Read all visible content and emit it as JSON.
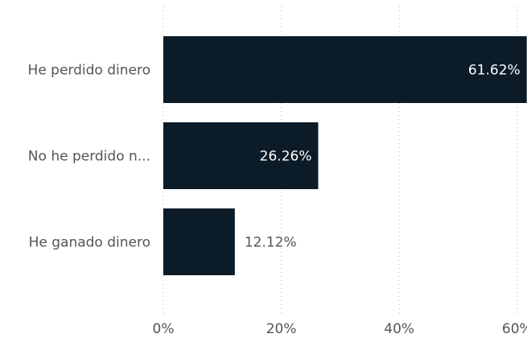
{
  "chart_data": {
    "type": "bar",
    "orientation": "horizontal",
    "categories": [
      "He perdido dinero",
      "No he perdido n...",
      "He ganado dinero"
    ],
    "values": [
      61.62,
      26.26,
      12.12
    ],
    "value_labels": [
      "61.62%",
      "26.26%",
      "12.12%"
    ],
    "xlim": [
      0,
      60
    ],
    "x_ticks": [
      0,
      20,
      40,
      60
    ],
    "x_tick_labels": [
      "0%",
      "20%",
      "40%",
      "60%"
    ],
    "grid": "vertical dotted",
    "bar_color": "#0b1b27",
    "label_inside_color": "#ffffff",
    "label_outside_color": "#555555"
  }
}
